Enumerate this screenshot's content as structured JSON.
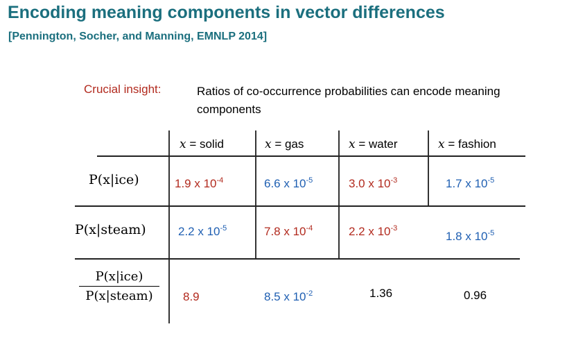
{
  "slide": {
    "title": "Encoding meaning components in vector differences",
    "citation": "[Pennington, Socher, and Manning, EMNLP 2014]",
    "insight_label": "Crucial insight:",
    "insight_text": "Ratios of co-occurrence probabilities can encode meaning components"
  },
  "table": {
    "headers": [
      {
        "var": "x",
        "rest": " = solid"
      },
      {
        "var": "x",
        "rest": " = gas"
      },
      {
        "var": "x",
        "rest": " = water"
      },
      {
        "var": "x",
        "rest": " = fashion"
      }
    ],
    "row_labels": [
      "P(x|ice)",
      "P(x|steam)"
    ],
    "ratio_label": {
      "numerator": "P(x|ice)",
      "denominator": "P(x|steam)"
    },
    "rows": [
      [
        {
          "mant": "1.9 x 10",
          "exp": "-4",
          "color": "red"
        },
        {
          "mant": "6.6 x 10",
          "exp": "-5",
          "color": "blue"
        },
        {
          "mant": "3.0 x 10",
          "exp": "-3",
          "color": "red"
        },
        {
          "mant": "1.7 x 10",
          "exp": "-5",
          "color": "blue"
        }
      ],
      [
        {
          "mant": "2.2 x 10",
          "exp": "-5",
          "color": "blue"
        },
        {
          "mant": "7.8 x 10",
          "exp": "-4",
          "color": "red"
        },
        {
          "mant": "2.2 x 10",
          "exp": "-3",
          "color": "red"
        },
        {
          "mant": "1.8 x 10",
          "exp": "-5",
          "color": "blue"
        }
      ],
      [
        {
          "mant": "8.9",
          "exp": "",
          "color": "red"
        },
        {
          "mant": "8.5 x 10",
          "exp": "-2",
          "color": "blue"
        },
        {
          "mant": "1.36",
          "exp": "",
          "color": "black"
        },
        {
          "mant": "0.96",
          "exp": "",
          "color": "black"
        }
      ]
    ]
  }
}
